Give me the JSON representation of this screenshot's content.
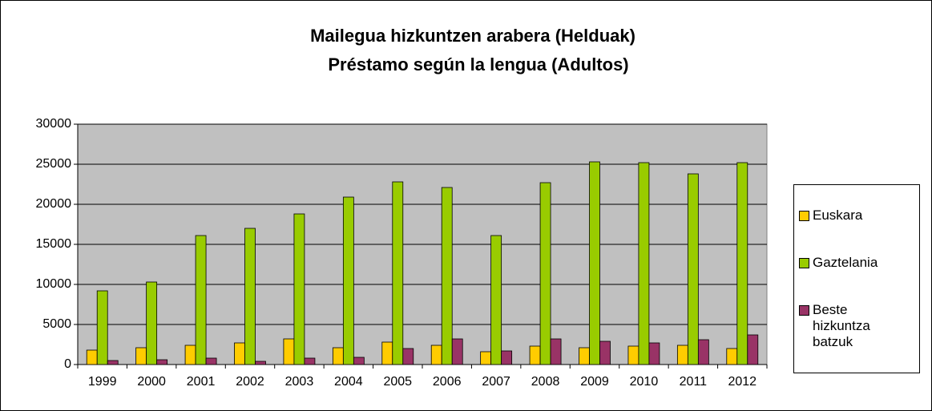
{
  "chart_data": {
    "type": "bar",
    "title": "Mailegua hizkuntzen arabera (Helduak)",
    "subtitle": "Préstamo según la lengua (Adultos)",
    "categories": [
      "1999",
      "2000",
      "2001",
      "2002",
      "2003",
      "2004",
      "2005",
      "2006",
      "2007",
      "2008",
      "2009",
      "2010",
      "2011",
      "2012"
    ],
    "series": [
      {
        "name": "Euskara",
        "color": "#ffcc00",
        "values": [
          1800,
          2100,
          2400,
          2700,
          3200,
          2100,
          2800,
          2400,
          1600,
          2300,
          2100,
          2300,
          2400,
          2000
        ]
      },
      {
        "name": "Gaztelania",
        "color": "#99cc00",
        "values": [
          9200,
          10300,
          16100,
          17000,
          18800,
          20900,
          22800,
          22100,
          16100,
          22700,
          25300,
          25200,
          23800,
          25200
        ]
      },
      {
        "name": "Beste hizkuntza batzuk",
        "color": "#993366",
        "values": [
          500,
          600,
          800,
          400,
          800,
          900,
          2000,
          3200,
          1700,
          3200,
          2900,
          2700,
          3100,
          3700
        ]
      }
    ],
    "ylim": [
      0,
      30000
    ],
    "yticks": [
      0,
      5000,
      10000,
      15000,
      20000,
      25000,
      30000
    ],
    "grid": true,
    "legend": "right"
  }
}
